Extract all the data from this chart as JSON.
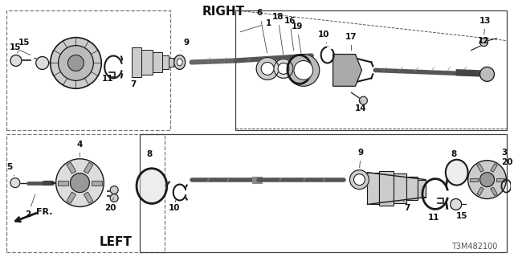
{
  "bg_color": "#ffffff",
  "line_color": "#1a1a1a",
  "dashed_color": "#777777",
  "text_color": "#111111",
  "right_label": "RIGHT",
  "left_label": "LEFT",
  "fr_label": "FR.",
  "diagram_number": "T3M482100"
}
